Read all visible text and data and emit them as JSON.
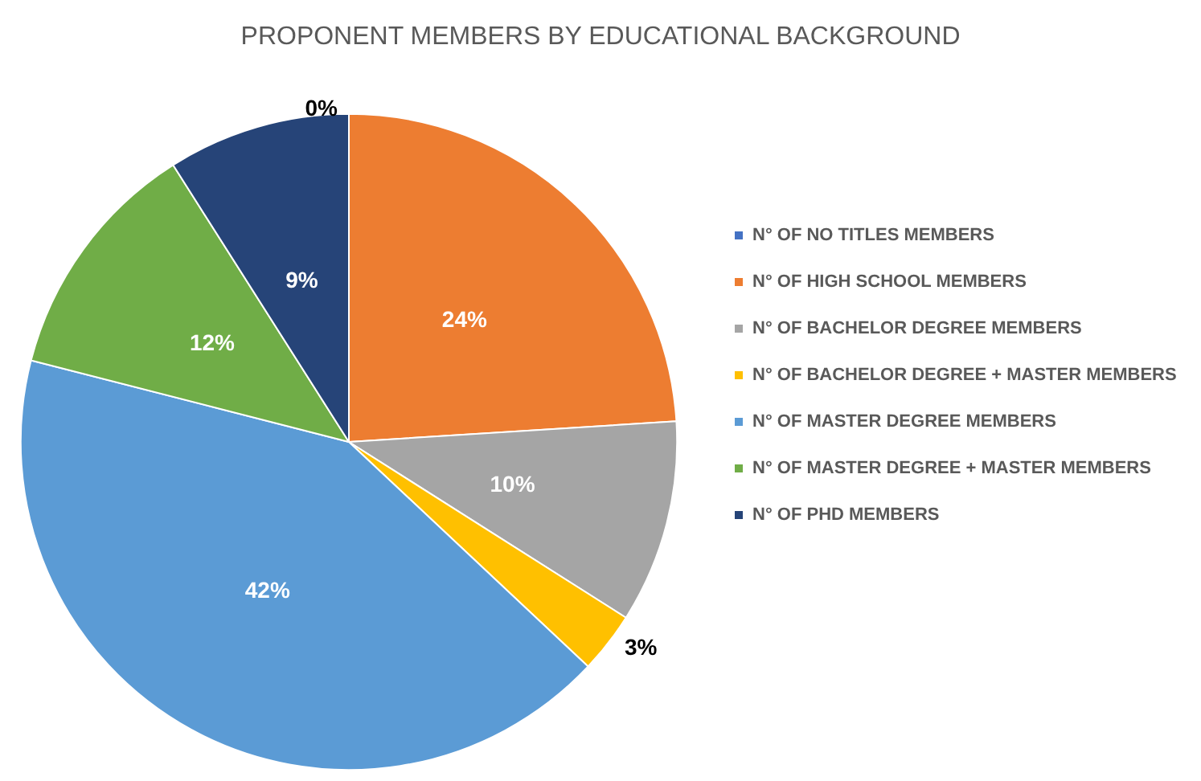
{
  "chart_data": {
    "type": "pie",
    "title": "PROPONENT MEMBERS BY EDUCATIONAL BACKGROUND",
    "categories": [
      "N° OF NO TITLES MEMBERS",
      "N° OF HIGH SCHOOL MEMBERS",
      "N° OF BACHELOR DEGREE MEMBERS",
      "N° OF BACHELOR DEGREE + MASTER MEMBERS",
      "N° OF MASTER DEGREE MEMBERS",
      "N° OF MASTER DEGREE + MASTER MEMBERS",
      "N° OF PHD MEMBERS"
    ],
    "values": [
      0,
      24,
      10,
      3,
      42,
      12,
      9
    ],
    "colors": [
      "#4472c4",
      "#ed7d31",
      "#a5a5a5",
      "#ffc000",
      "#5b9bd5",
      "#70ad47",
      "#264478"
    ],
    "value_labels": [
      "0%",
      "24%",
      "10%",
      "3%",
      "42%",
      "12%",
      "9%"
    ],
    "legend": "right"
  }
}
